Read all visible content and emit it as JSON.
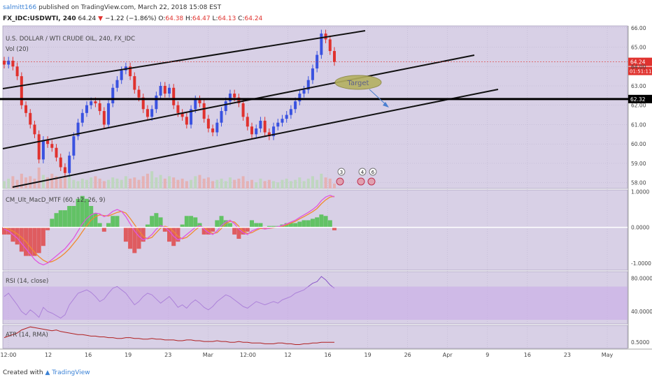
{
  "header": {
    "user": "salmitt166",
    "published_text": "published on TradingView.com, March 22, 2018 15:08 EST",
    "symbol": "FX_IDC:USDWTI, 240",
    "last": "64.24",
    "change_arrow": "▼",
    "change": "−1.22 (−1.86%)",
    "open_label": "O:",
    "open": "64.38",
    "high_label": "H:",
    "high": "64.47",
    "low_label": "L:",
    "low": "64.13",
    "close_label": "C:",
    "close": "64.24"
  },
  "footer": {
    "created_with": "Created with",
    "brand": "TradingView"
  },
  "colors": {
    "pane_bg": "#d8d0e6",
    "up": "#3a52e0",
    "down": "#e0322e",
    "macd": "#e055e0",
    "signal": "#f08a30",
    "rsi": "#8a56c8",
    "atr": "#b02020"
  },
  "chart_data": [
    {
      "type": "candlestick",
      "title": "U.S. DOLLAR / WTI CRUDE OIL, 240, FX_IDC",
      "subtitle": "Vol (20)",
      "ylim": [
        57.7,
        66.1
      ],
      "y_ticks": [
        "66.00",
        "65.00",
        "64.00",
        "63.00",
        "62.00",
        "61.00",
        "60.00",
        "59.00",
        "58.00"
      ],
      "x_ticks": [
        "12:00",
        "12",
        "16",
        "19",
        "23",
        "Mar",
        "12:00",
        "12",
        "16",
        "19",
        "26",
        "Apr",
        "9",
        "16",
        "23",
        "May"
      ],
      "last_price_label": "64.24",
      "countdown_label": "01:51:11",
      "level_label": "62.32",
      "annotation": "Target",
      "event_labels": [
        "3",
        "4",
        "6"
      ],
      "close_series": [
        64.1,
        64.3,
        64.0,
        63.5,
        62.0,
        61.6,
        61.0,
        60.5,
        59.2,
        60.2,
        60.0,
        59.8,
        59.3,
        58.8,
        58.5,
        59.4,
        60.4,
        61.1,
        61.6,
        62.0,
        62.2,
        62.1,
        61.7,
        61.0,
        62.1,
        62.9,
        63.3,
        63.8,
        64.0,
        63.5,
        62.8,
        62.4,
        61.8,
        61.4,
        61.8,
        62.5,
        63.0,
        62.6,
        62.9,
        62.0,
        61.6,
        61.4,
        61.0,
        61.8,
        62.3,
        62.1,
        61.3,
        60.8,
        60.6,
        61.1,
        61.7,
        62.2,
        62.6,
        62.4,
        62.1,
        61.4,
        60.9,
        60.5,
        60.8,
        61.2,
        60.6,
        60.4,
        60.9,
        61.1,
        61.3,
        61.5,
        61.8,
        62.2,
        62.6,
        62.8,
        63.3,
        63.9,
        64.6,
        65.7,
        65.4,
        64.8,
        64.24
      ],
      "volume": [
        0.3,
        0.4,
        0.5,
        0.35,
        0.6,
        0.45,
        0.5,
        0.4,
        0.85,
        0.55,
        0.45,
        0.6,
        0.5,
        0.4,
        0.45,
        0.5,
        0.35,
        0.3,
        0.4,
        0.35,
        0.45,
        0.5,
        0.4,
        0.3,
        0.35,
        0.45,
        0.4,
        0.35,
        0.5,
        0.4,
        0.45,
        0.35,
        0.5,
        0.6,
        0.7,
        0.45,
        0.55,
        0.4,
        0.5,
        0.45,
        0.35,
        0.4,
        0.3,
        0.35,
        0.5,
        0.55,
        0.4,
        0.45,
        0.3,
        0.35,
        0.4,
        0.3,
        0.45,
        0.35,
        0.4,
        0.5,
        0.3,
        0.35,
        0.25,
        0.4,
        0.3,
        0.35,
        0.3,
        0.25,
        0.35,
        0.4,
        0.3,
        0.35,
        0.45,
        0.3,
        0.4,
        0.5,
        0.35,
        0.6,
        0.45,
        0.4,
        0.2
      ]
    },
    {
      "type": "line",
      "title": "CM_Ult_MacD_MTF (60, 12, 26, 9)",
      "ylim": [
        -1.2,
        1.05
      ],
      "y_ticks": [
        "1.0000",
        "0.0000",
        "-1.0000"
      ],
      "series": [
        {
          "values": [
            -0.05,
            -0.1,
            -0.2,
            -0.3,
            -0.45,
            -0.6,
            -0.75,
            -0.9,
            -1.0,
            -1.05,
            -1.0,
            -0.9,
            -0.8,
            -0.7,
            -0.6,
            -0.45,
            -0.3,
            -0.1,
            0.1,
            0.25,
            0.35,
            0.4,
            0.38,
            0.3,
            0.35,
            0.45,
            0.5,
            0.45,
            0.3,
            0.1,
            -0.1,
            -0.25,
            -0.35,
            -0.3,
            -0.2,
            -0.05,
            0.05,
            0.0,
            -0.1,
            -0.25,
            -0.35,
            -0.3,
            -0.2,
            -0.1,
            0.0,
            0.05,
            -0.05,
            -0.15,
            -0.2,
            -0.1,
            0.05,
            0.15,
            0.2,
            0.1,
            -0.05,
            -0.15,
            -0.2,
            -0.1,
            -0.05,
            0.0,
            -0.05,
            -0.02,
            0.0,
            0.02,
            0.05,
            0.1,
            0.15,
            0.2,
            0.28,
            0.35,
            0.42,
            0.5,
            0.6,
            0.75,
            0.85,
            0.9,
            0.85
          ]
        },
        {
          "values": [
            0.0,
            -0.05,
            -0.1,
            -0.18,
            -0.28,
            -0.4,
            -0.55,
            -0.7,
            -0.82,
            -0.92,
            -0.98,
            -0.96,
            -0.9,
            -0.82,
            -0.72,
            -0.6,
            -0.45,
            -0.3,
            -0.12,
            0.05,
            0.2,
            0.3,
            0.35,
            0.33,
            0.32,
            0.37,
            0.42,
            0.45,
            0.4,
            0.25,
            0.08,
            -0.1,
            -0.25,
            -0.32,
            -0.28,
            -0.15,
            -0.02,
            0.03,
            0.0,
            -0.12,
            -0.25,
            -0.32,
            -0.28,
            -0.18,
            -0.07,
            0.02,
            0.0,
            -0.1,
            -0.17,
            -0.15,
            -0.03,
            0.1,
            0.17,
            0.15,
            0.03,
            -0.1,
            -0.17,
            -0.15,
            -0.08,
            -0.03,
            -0.04,
            -0.03,
            -0.01,
            0.01,
            0.03,
            0.07,
            0.12,
            0.17,
            0.24,
            0.3,
            0.37,
            0.44,
            0.53,
            0.66,
            0.77,
            0.85,
            0.87
          ]
        }
      ]
    },
    {
      "type": "line",
      "title": "RSI (14, close)",
      "ylim": [
        25,
        88
      ],
      "y_ticks": [
        "80.0000",
        "40.0000"
      ],
      "band": [
        30,
        70
      ],
      "values": [
        58,
        62,
        55,
        48,
        40,
        36,
        42,
        38,
        33,
        45,
        40,
        38,
        35,
        32,
        36,
        48,
        55,
        62,
        64,
        66,
        63,
        58,
        52,
        55,
        62,
        68,
        70,
        66,
        62,
        55,
        48,
        52,
        58,
        62,
        60,
        55,
        50,
        54,
        58,
        52,
        45,
        48,
        44,
        50,
        54,
        50,
        45,
        42,
        46,
        52,
        56,
        60,
        58,
        54,
        50,
        46,
        44,
        48,
        52,
        50,
        48,
        50,
        52,
        50,
        54,
        56,
        58,
        62,
        64,
        66,
        70,
        74,
        76,
        82,
        78,
        72,
        68
      ]
    },
    {
      "type": "line",
      "title": "ATR (14, RMA)",
      "ylim": [
        0.42,
        0.72
      ],
      "y_ticks": [
        "0.5000"
      ],
      "values": [
        0.56,
        0.58,
        0.6,
        0.62,
        0.66,
        0.68,
        0.7,
        0.69,
        0.68,
        0.67,
        0.66,
        0.65,
        0.66,
        0.64,
        0.63,
        0.62,
        0.61,
        0.6,
        0.6,
        0.59,
        0.58,
        0.58,
        0.57,
        0.57,
        0.56,
        0.56,
        0.55,
        0.55,
        0.56,
        0.56,
        0.55,
        0.55,
        0.54,
        0.54,
        0.55,
        0.54,
        0.54,
        0.53,
        0.53,
        0.53,
        0.52,
        0.52,
        0.53,
        0.53,
        0.52,
        0.52,
        0.51,
        0.51,
        0.51,
        0.52,
        0.51,
        0.51,
        0.5,
        0.5,
        0.51,
        0.5,
        0.5,
        0.49,
        0.49,
        0.49,
        0.48,
        0.48,
        0.48,
        0.49,
        0.49,
        0.48,
        0.48,
        0.47,
        0.47,
        0.48,
        0.48,
        0.49,
        0.49,
        0.5,
        0.5,
        0.5,
        0.5
      ]
    }
  ]
}
